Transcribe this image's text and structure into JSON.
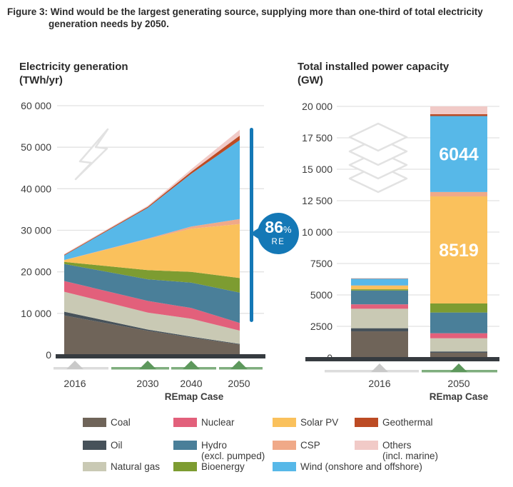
{
  "figure_caption": {
    "line1": "Figure 3: Wind would be the largest generating source, supplying more than one-third of total electricity",
    "line2": "generation needs by 2050."
  },
  "left_chart": {
    "title_line1": "Electricity generation",
    "title_line2": "(TWh/yr)",
    "remap_label": "REmap Case"
  },
  "right_chart": {
    "title_line1": "Total installed power capacity",
    "title_line2": "(GW)",
    "remap_label": "REmap Case"
  },
  "badge": {
    "value": "86",
    "percent": "%",
    "unit": "RE"
  },
  "style_colors": {
    "annotation_blue": "#1478b6",
    "axis": "#363b40",
    "grid": "#e2e2e2",
    "icon_outline": "#e2e2e2",
    "marker_gray_line": "#dcdcdc",
    "marker_gray_triangle": "#c9c9c9",
    "marker_green_line": "#7fae7e",
    "marker_green_triangle": "#5d985c",
    "text": "#3c3c3c"
  },
  "legend": {
    "columns": [
      [
        {
          "label": "Coal",
          "color": "#6f6459"
        },
        {
          "label": "Oil",
          "color": "#47525a"
        },
        {
          "label": "Natural gas",
          "color": "#c9c9b4"
        }
      ],
      [
        {
          "label": "Nuclear",
          "color": "#e2607b"
        },
        {
          "label": "Hydro",
          "label2": "(excl. pumped)",
          "color": "#4a7f99"
        },
        {
          "label": "Bioenergy",
          "color": "#7d9c31"
        }
      ],
      [
        {
          "label": "Solar PV",
          "color": "#fac15c"
        },
        {
          "label": "CSP",
          "color": "#f0a988"
        },
        {
          "label": "Wind (onshore and offshore)",
          "color": "#57b8e8"
        }
      ],
      [
        {
          "label": "Geothermal",
          "color": "#bc4b24"
        },
        {
          "label": "Others",
          "label2": "(incl. marine)",
          "color": "#f1cac7"
        }
      ]
    ]
  },
  "chart_data": [
    {
      "type": "area",
      "title": "Electricity generation (TWh/yr)",
      "x": [
        2016,
        2030,
        2040,
        2050
      ],
      "x_labels": [
        "2016",
        "2030",
        "2040",
        "2050"
      ],
      "x_axis_title": "REmap Case",
      "ylim": [
        0,
        60000
      ],
      "y_ticks": [
        0,
        10000,
        20000,
        30000,
        40000,
        50000,
        60000
      ],
      "y_tick_labels": [
        "0",
        "10 000",
        "20 000",
        "30 000",
        "40 000",
        "50 000",
        "60 000"
      ],
      "grid": true,
      "annotation": {
        "text": "86% RE",
        "meaning": "renewable share of generation in 2050"
      },
      "x_markers": [
        {
          "label": "2016",
          "style": "gray"
        },
        {
          "label": "2030",
          "style": "green"
        },
        {
          "label": "2040",
          "style": "green"
        },
        {
          "label": "2050",
          "style": "green"
        }
      ],
      "series": [
        {
          "name": "Coal",
          "color": "#6f6459",
          "values": [
            9500,
            5800,
            4200,
            2500
          ]
        },
        {
          "name": "Oil",
          "color": "#47525a",
          "values": [
            900,
            300,
            200,
            150
          ]
        },
        {
          "name": "Natural gas",
          "color": "#c9c9b4",
          "values": [
            4800,
            4100,
            4300,
            3200
          ]
        },
        {
          "name": "Nuclear",
          "color": "#e2607b",
          "values": [
            2600,
            2800,
            2600,
            1850
          ]
        },
        {
          "name": "Hydro (excl. pumped)",
          "color": "#4a7f99",
          "values": [
            4100,
            5200,
            6100,
            7300
          ]
        },
        {
          "name": "Bioenergy",
          "color": "#7d9c31",
          "values": [
            500,
            2200,
            2600,
            3500
          ]
        },
        {
          "name": "Solar PV",
          "color": "#fac15c",
          "values": [
            400,
            7450,
            10400,
            13000
          ]
        },
        {
          "name": "CSP",
          "color": "#f0a988",
          "values": [
            50,
            150,
            500,
            1200
          ]
        },
        {
          "name": "Wind (onshore and offshore)",
          "color": "#57b8e8",
          "values": [
            1100,
            7400,
            12700,
            19000
          ]
        },
        {
          "name": "Geothermal",
          "color": "#bc4b24",
          "values": [
            150,
            250,
            500,
            1100
          ]
        },
        {
          "name": "Others (incl. marine)",
          "color": "#f1cac7",
          "values": [
            200,
            250,
            600,
            1400
          ]
        }
      ]
    },
    {
      "type": "bar",
      "title": "Total installed power capacity (GW)",
      "categories": [
        "2016",
        "2050"
      ],
      "x_axis_title": "REmap Case",
      "ylim": [
        0,
        20000
      ],
      "y_ticks": [
        0,
        2500,
        5000,
        7500,
        10000,
        12500,
        15000,
        17500,
        20000
      ],
      "y_tick_labels": [
        "0",
        "2500",
        "5000",
        "7500",
        "10 000",
        "12 500",
        "15 000",
        "17 500",
        "20 000"
      ],
      "grid": true,
      "x_markers": [
        {
          "label": "2016",
          "style": "gray"
        },
        {
          "label": "2050",
          "style": "green"
        }
      ],
      "bar_labels": [
        {
          "category": "2050",
          "series": "Wind (onshore and offshore)",
          "text": "6044"
        },
        {
          "category": "2050",
          "series": "Solar PV",
          "text": "8519"
        }
      ],
      "series": [
        {
          "name": "Coal",
          "color": "#6f6459",
          "values": [
            2100,
            400
          ]
        },
        {
          "name": "Oil",
          "color": "#47525a",
          "values": [
            250,
            100
          ]
        },
        {
          "name": "Natural gas",
          "color": "#c9c9b4",
          "values": [
            1550,
            1050
          ]
        },
        {
          "name": "Nuclear",
          "color": "#e2607b",
          "values": [
            350,
            400
          ]
        },
        {
          "name": "Hydro (excl. pumped)",
          "color": "#4a7f99",
          "values": [
            1100,
            1650
          ]
        },
        {
          "name": "Bioenergy",
          "color": "#7d9c31",
          "values": [
            100,
            720
          ]
        },
        {
          "name": "Solar PV",
          "color": "#fac15c",
          "values": [
            300,
            8519
          ]
        },
        {
          "name": "CSP",
          "color": "#f0a988",
          "values": [
            5,
            350
          ]
        },
        {
          "name": "Wind (onshore and offshore)",
          "color": "#57b8e8",
          "values": [
            550,
            6044
          ]
        },
        {
          "name": "Geothermal",
          "color": "#bc4b24",
          "values": [
            10,
            150
          ]
        },
        {
          "name": "Others (incl. marine)",
          "color": "#f1cac7",
          "values": [
            10,
            620
          ]
        }
      ]
    }
  ]
}
